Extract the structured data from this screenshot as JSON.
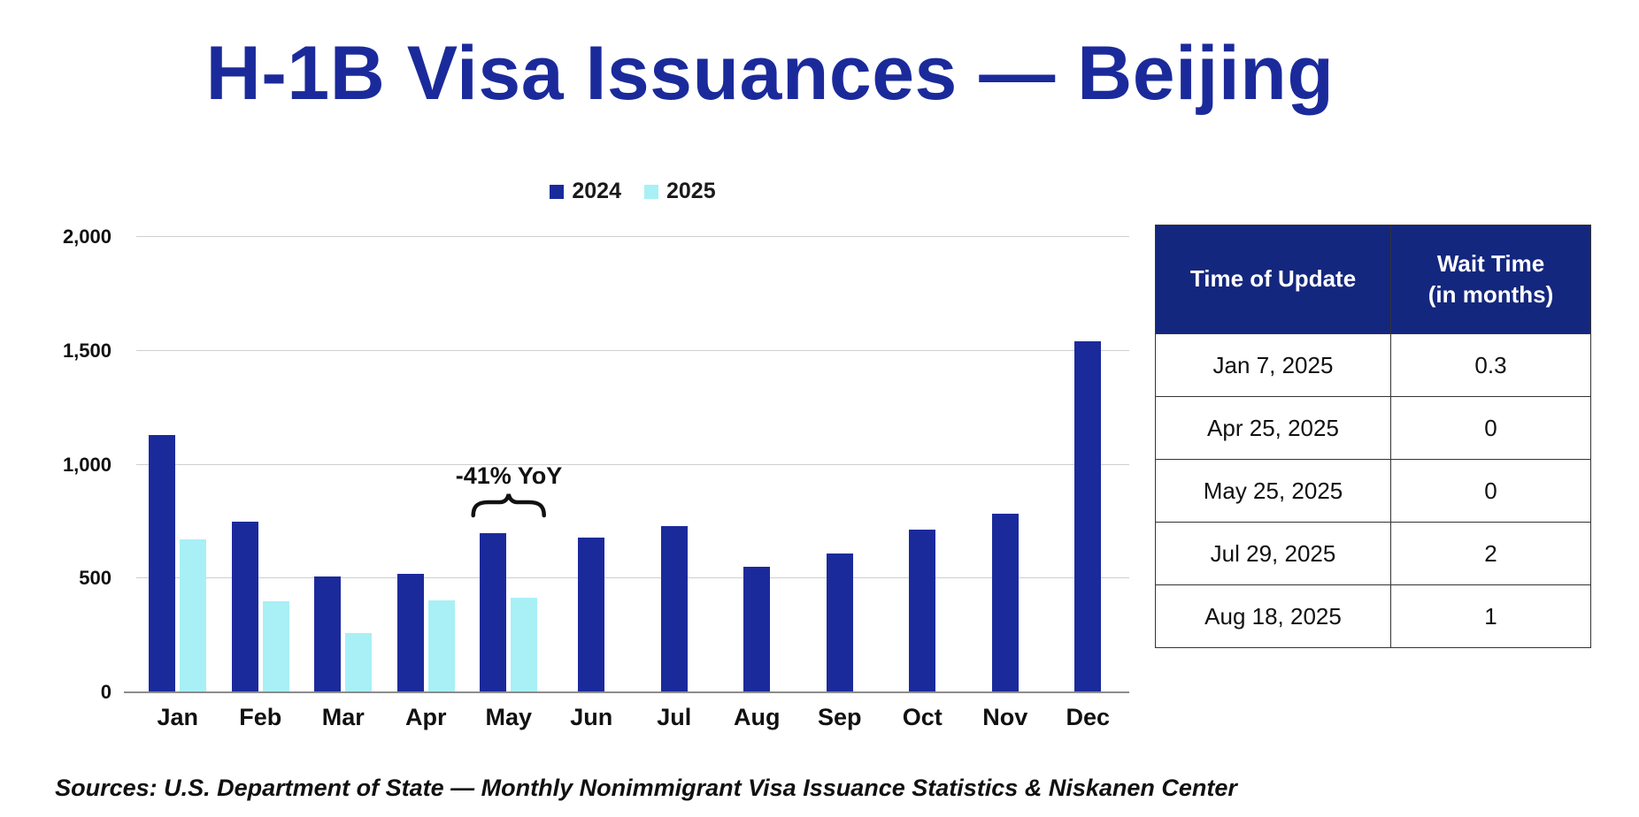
{
  "title": "H-1B Visa Issuances — Beijing",
  "legend": [
    {
      "label": "2024",
      "color": "#1b2a9b"
    },
    {
      "label": "2025",
      "color": "#a8f0f6"
    }
  ],
  "chart_data": {
    "type": "bar",
    "title": "H-1B Visa Issuances — Beijing",
    "categories": [
      "Jan",
      "Feb",
      "Mar",
      "Apr",
      "May",
      "Jun",
      "Jul",
      "Aug",
      "Sep",
      "Oct",
      "Nov",
      "Dec"
    ],
    "series": [
      {
        "name": "2024",
        "color": "#1b2a9b",
        "values": [
          1130,
          750,
          510,
          520,
          700,
          680,
          730,
          550,
          610,
          715,
          785,
          1540
        ]
      },
      {
        "name": "2025",
        "color": "#a8f0f6",
        "values": [
          670,
          400,
          260,
          405,
          415,
          null,
          null,
          null,
          null,
          null,
          null,
          null
        ]
      }
    ],
    "xlabel": "",
    "ylabel": "",
    "ylim": [
      0,
      2000
    ],
    "yticks": [
      0,
      500,
      1000,
      1500,
      2000
    ],
    "ytick_labels": [
      "0",
      "500",
      "1,000",
      "1,500",
      "2,000"
    ],
    "grid": true,
    "legend_position": "top",
    "annotation": {
      "text": "-41% YoY",
      "target_category": "May"
    }
  },
  "table": {
    "header_col1": "Time of Update",
    "header_col2_line1": "Wait Time",
    "header_col2_line2": "(in months)",
    "rows": [
      {
        "time_of_update": "Jan 7, 2025",
        "wait_time": "0.3"
      },
      {
        "time_of_update": "Apr 25, 2025",
        "wait_time": "0"
      },
      {
        "time_of_update": "May 25, 2025",
        "wait_time": "0"
      },
      {
        "time_of_update": "Jul 29, 2025",
        "wait_time": "2"
      },
      {
        "time_of_update": "Aug 18, 2025",
        "wait_time": "1"
      }
    ]
  },
  "footer": "Sources: U.S. Department of State — Monthly Nonimmigrant Visa Issuance Statistics & Niskanen Center"
}
